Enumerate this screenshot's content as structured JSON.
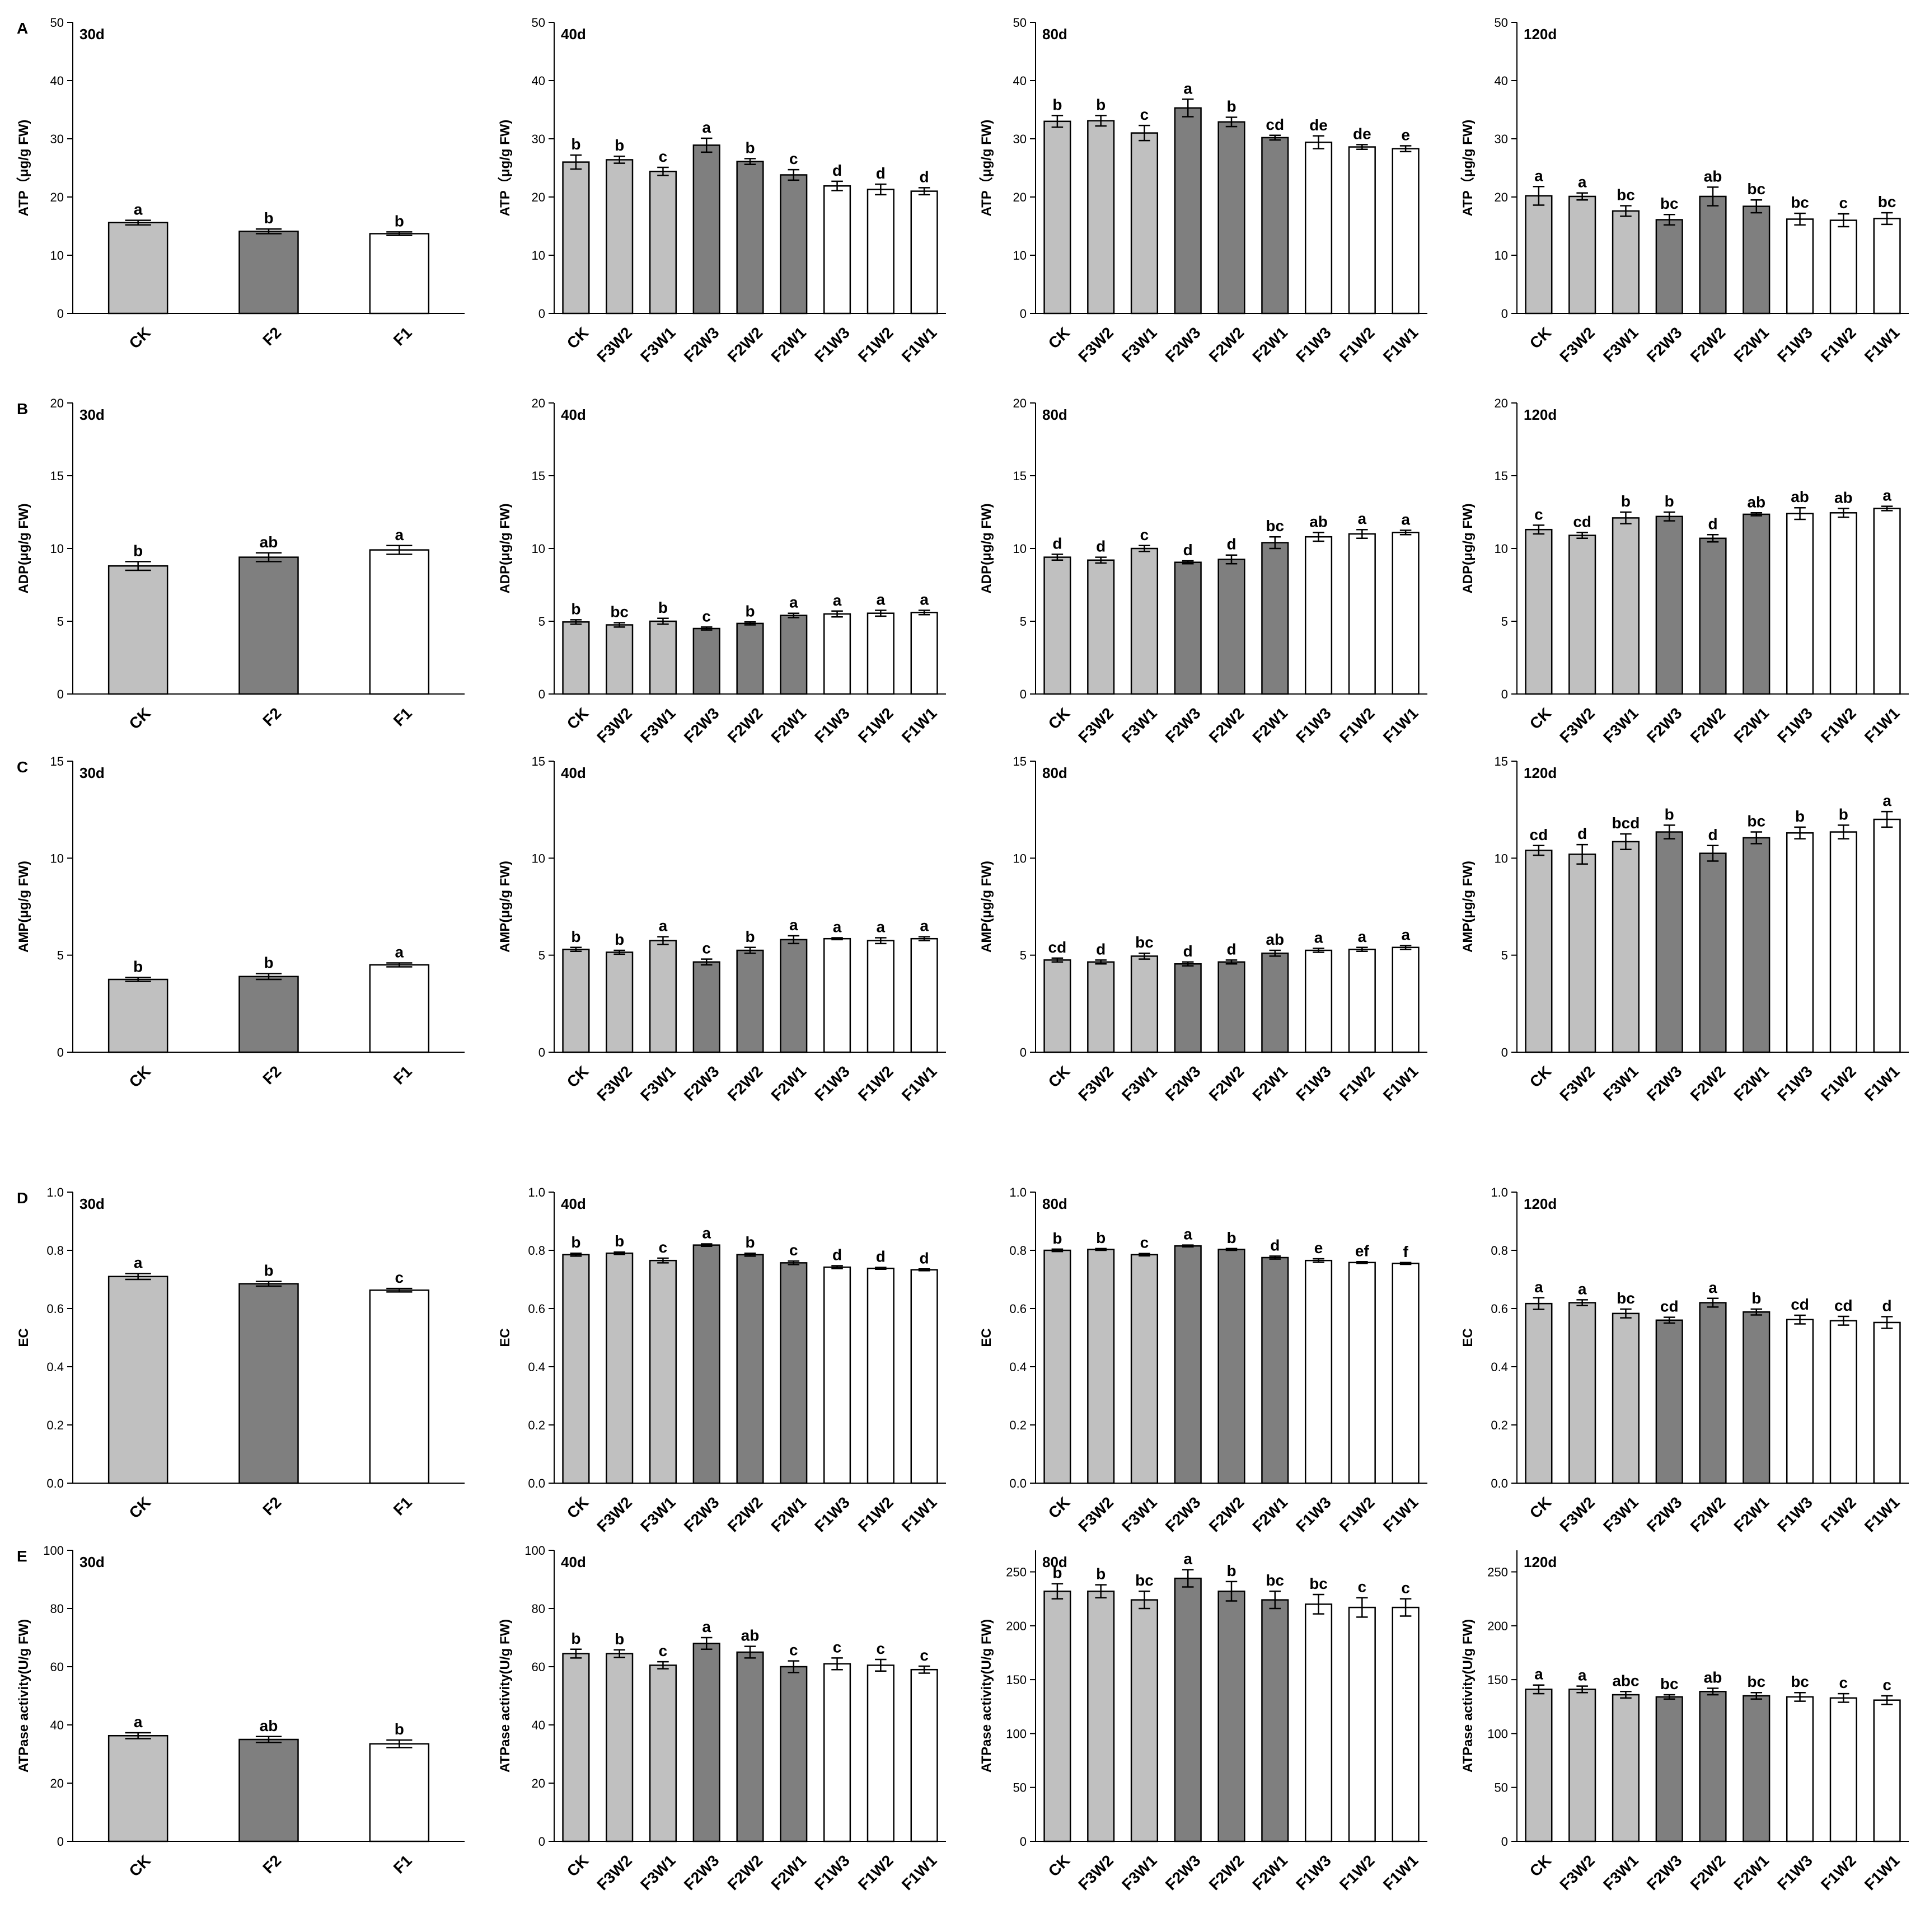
{
  "chart_data": [
    {
      "type": "bar",
      "panel": "A",
      "title": "30d",
      "ylabel": "ATP（μg/g FW)",
      "categories": [
        "CK",
        "F2",
        "F1"
      ],
      "values": [
        15.6,
        14.1,
        13.7
      ],
      "errors": [
        0.4,
        0.4,
        0.3
      ],
      "letters": [
        "a",
        "b",
        "b"
      ],
      "colors": [
        "#c0c0c0",
        "#7f7f7f",
        "#ffffff"
      ],
      "ylim": [
        0,
        50
      ],
      "yticks": [
        0,
        10,
        20,
        30,
        40,
        50
      ]
    },
    {
      "type": "bar",
      "title": "40d",
      "ylabel": "ATP（μg/g FW)",
      "categories": [
        "CK",
        "F3W2",
        "F3W1",
        "F2W3",
        "F2W2",
        "F2W1",
        "F1W3",
        "F1W2",
        "F1W1"
      ],
      "values": [
        26,
        26.4,
        24.4,
        28.9,
        26.1,
        23.8,
        21.9,
        21.3,
        21
      ],
      "errors": [
        1.2,
        0.6,
        0.7,
        1.2,
        0.5,
        0.9,
        0.8,
        0.9,
        0.6
      ],
      "letters": [
        "b",
        "b",
        "c",
        "a",
        "b",
        "c",
        "d",
        "d",
        "d"
      ],
      "colors": [
        "#c0c0c0",
        "#c0c0c0",
        "#c0c0c0",
        "#7f7f7f",
        "#7f7f7f",
        "#7f7f7f",
        "#ffffff",
        "#ffffff",
        "#ffffff"
      ],
      "ylim": [
        0,
        50
      ],
      "yticks": [
        0,
        10,
        20,
        30,
        40,
        50
      ]
    },
    {
      "type": "bar",
      "title": "80d",
      "ylabel": "ATP（μg/g FW)",
      "categories": [
        "CK",
        "F3W2",
        "F3W1",
        "F2W3",
        "F2W2",
        "F2W1",
        "F1W3",
        "F1W2",
        "F1W1"
      ],
      "values": [
        33,
        33.1,
        31,
        35.3,
        32.9,
        30.2,
        29.4,
        28.6,
        28.3
      ],
      "errors": [
        1,
        0.9,
        1.3,
        1.5,
        0.8,
        0.4,
        1.1,
        0.4,
        0.5
      ],
      "letters": [
        "b",
        "b",
        "c",
        "a",
        "b",
        "cd",
        "de",
        "de",
        "e"
      ],
      "colors": [
        "#c0c0c0",
        "#c0c0c0",
        "#c0c0c0",
        "#7f7f7f",
        "#7f7f7f",
        "#7f7f7f",
        "#ffffff",
        "#ffffff",
        "#ffffff"
      ],
      "ylim": [
        0,
        50
      ],
      "yticks": [
        0,
        10,
        20,
        30,
        40,
        50
      ]
    },
    {
      "type": "bar",
      "title": "120d",
      "ylabel": "ATP（μg/g FW)",
      "categories": [
        "CK",
        "F3W2",
        "F3W1",
        "F2W3",
        "F2W2",
        "F2W1",
        "F1W3",
        "F1W2",
        "F1W1"
      ],
      "values": [
        20.2,
        20.1,
        17.6,
        16.1,
        20.1,
        18.4,
        16.2,
        16,
        16.3
      ],
      "errors": [
        1.6,
        0.6,
        0.9,
        0.9,
        1.6,
        1.1,
        1,
        1.1,
        1
      ],
      "letters": [
        "a",
        "a",
        "bc",
        "bc",
        "ab",
        "bc",
        "bc",
        "c",
        "bc"
      ],
      "colors": [
        "#c0c0c0",
        "#c0c0c0",
        "#c0c0c0",
        "#7f7f7f",
        "#7f7f7f",
        "#7f7f7f",
        "#ffffff",
        "#ffffff",
        "#ffffff"
      ],
      "ylim": [
        0,
        50
      ],
      "yticks": [
        0,
        10,
        20,
        30,
        40,
        50
      ]
    },
    {
      "type": "bar",
      "panel": "B",
      "title": "30d",
      "ylabel": "ADP(μg/g FW)",
      "categories": [
        "CK",
        "F2",
        "F1"
      ],
      "values": [
        8.8,
        9.4,
        9.9
      ],
      "errors": [
        0.3,
        0.3,
        0.3
      ],
      "letters": [
        "b",
        "ab",
        "a"
      ],
      "colors": [
        "#c0c0c0",
        "#7f7f7f",
        "#ffffff"
      ],
      "ylim": [
        0,
        20
      ],
      "yticks": [
        0,
        5,
        10,
        15,
        20
      ]
    },
    {
      "type": "bar",
      "title": "40d",
      "ylabel": "ADP(μg/g FW)",
      "categories": [
        "CK",
        "F3W2",
        "F3W1",
        "F2W3",
        "F2W2",
        "F2W1",
        "F1W3",
        "F1W2",
        "F1W1"
      ],
      "values": [
        4.95,
        4.75,
        5,
        4.5,
        4.85,
        5.4,
        5.5,
        5.55,
        5.6
      ],
      "errors": [
        0.15,
        0.15,
        0.2,
        0.1,
        0.1,
        0.15,
        0.2,
        0.2,
        0.15
      ],
      "letters": [
        "b",
        "bc",
        "b",
        "c",
        "b",
        "a",
        "a",
        "a",
        "a"
      ],
      "colors": [
        "#c0c0c0",
        "#c0c0c0",
        "#c0c0c0",
        "#7f7f7f",
        "#7f7f7f",
        "#7f7f7f",
        "#ffffff",
        "#ffffff",
        "#ffffff"
      ],
      "ylim": [
        0,
        20
      ],
      "yticks": [
        0,
        5,
        10,
        15,
        20
      ]
    },
    {
      "type": "bar",
      "title": "80d",
      "ylabel": "ADP(μg/g FW)",
      "categories": [
        "CK",
        "F3W2",
        "F3W1",
        "F2W3",
        "F2W2",
        "F2W1",
        "F1W3",
        "F1W2",
        "F1W1"
      ],
      "values": [
        9.4,
        9.2,
        10,
        9.05,
        9.25,
        10.4,
        10.8,
        11,
        11.1
      ],
      "errors": [
        0.2,
        0.2,
        0.2,
        0.1,
        0.3,
        0.4,
        0.3,
        0.3,
        0.15
      ],
      "letters": [
        "d",
        "d",
        "c",
        "d",
        "d",
        "bc",
        "ab",
        "a",
        "a"
      ],
      "colors": [
        "#c0c0c0",
        "#c0c0c0",
        "#c0c0c0",
        "#7f7f7f",
        "#7f7f7f",
        "#7f7f7f",
        "#ffffff",
        "#ffffff",
        "#ffffff"
      ],
      "ylim": [
        0,
        20
      ],
      "yticks": [
        0,
        5,
        10,
        15,
        20
      ]
    },
    {
      "type": "bar",
      "title": "120d",
      "ylabel": "ADP(μg/g FW)",
      "categories": [
        "CK",
        "F3W2",
        "F3W1",
        "F2W3",
        "F2W2",
        "F2W1",
        "F1W3",
        "F1W2",
        "F1W1"
      ],
      "values": [
        11.3,
        10.9,
        12.1,
        12.2,
        10.7,
        12.35,
        12.4,
        12.45,
        12.75
      ],
      "errors": [
        0.3,
        0.2,
        0.4,
        0.3,
        0.25,
        0.1,
        0.4,
        0.3,
        0.15
      ],
      "letters": [
        "c",
        "cd",
        "b",
        "b",
        "d",
        "ab",
        "ab",
        "ab",
        "a"
      ],
      "colors": [
        "#c0c0c0",
        "#c0c0c0",
        "#c0c0c0",
        "#7f7f7f",
        "#7f7f7f",
        "#7f7f7f",
        "#ffffff",
        "#ffffff",
        "#ffffff"
      ],
      "ylim": [
        0,
        20
      ],
      "yticks": [
        0,
        5,
        10,
        15,
        20
      ]
    },
    {
      "type": "bar",
      "panel": "C",
      "title": "30d",
      "ylabel": "AMP(μg/g FW)",
      "categories": [
        "CK",
        "F2",
        "F1"
      ],
      "values": [
        3.75,
        3.9,
        4.5
      ],
      "errors": [
        0.1,
        0.15,
        0.1
      ],
      "letters": [
        "b",
        "b",
        "a"
      ],
      "colors": [
        "#c0c0c0",
        "#7f7f7f",
        "#ffffff"
      ],
      "ylim": [
        0,
        15
      ],
      "yticks": [
        0,
        5,
        10,
        15
      ]
    },
    {
      "type": "bar",
      "title": "40d",
      "ylabel": "AMP(μg/g FW)",
      "categories": [
        "CK",
        "F3W2",
        "F3W1",
        "F2W3",
        "F2W2",
        "F2W1",
        "F1W3",
        "F1W2",
        "F1W1"
      ],
      "values": [
        5.3,
        5.15,
        5.75,
        4.65,
        5.25,
        5.8,
        5.85,
        5.75,
        5.85
      ],
      "errors": [
        0.1,
        0.1,
        0.2,
        0.15,
        0.15,
        0.2,
        0.05,
        0.15,
        0.1
      ],
      "letters": [
        "b",
        "b",
        "a",
        "c",
        "b",
        "a",
        "a",
        "a",
        "a"
      ],
      "colors": [
        "#c0c0c0",
        "#c0c0c0",
        "#c0c0c0",
        "#7f7f7f",
        "#7f7f7f",
        "#7f7f7f",
        "#ffffff",
        "#ffffff",
        "#ffffff"
      ],
      "ylim": [
        0,
        15
      ],
      "yticks": [
        0,
        5,
        10,
        15
      ]
    },
    {
      "type": "bar",
      "title": "80d",
      "ylabel": "AMP(μg/g FW)",
      "categories": [
        "CK",
        "F3W2",
        "F3W1",
        "F2W3",
        "F2W2",
        "F2W1",
        "F1W3",
        "F1W2",
        "F1W1"
      ],
      "values": [
        4.75,
        4.65,
        4.95,
        4.55,
        4.65,
        5.1,
        5.25,
        5.3,
        5.4
      ],
      "errors": [
        0.1,
        0.1,
        0.15,
        0.1,
        0.1,
        0.15,
        0.1,
        0.1,
        0.1
      ],
      "letters": [
        "cd",
        "d",
        "bc",
        "d",
        "d",
        "ab",
        "a",
        "a",
        "a"
      ],
      "colors": [
        "#c0c0c0",
        "#c0c0c0",
        "#c0c0c0",
        "#7f7f7f",
        "#7f7f7f",
        "#7f7f7f",
        "#ffffff",
        "#ffffff",
        "#ffffff"
      ],
      "ylim": [
        0,
        15
      ],
      "yticks": [
        0,
        5,
        10,
        15
      ]
    },
    {
      "type": "bar",
      "title": "120d",
      "ylabel": "AMP(μg/g FW)",
      "categories": [
        "CK",
        "F3W2",
        "F3W1",
        "F2W3",
        "F2W2",
        "F2W1",
        "F1W3",
        "F1W2",
        "F1W1"
      ],
      "values": [
        10.4,
        10.2,
        10.85,
        11.35,
        10.25,
        11.05,
        11.3,
        11.35,
        12
      ],
      "errors": [
        0.25,
        0.5,
        0.4,
        0.35,
        0.4,
        0.3,
        0.3,
        0.35,
        0.4
      ],
      "letters": [
        "cd",
        "d",
        "bcd",
        "b",
        "d",
        "bc",
        "b",
        "b",
        "a"
      ],
      "colors": [
        "#c0c0c0",
        "#c0c0c0",
        "#c0c0c0",
        "#7f7f7f",
        "#7f7f7f",
        "#7f7f7f",
        "#ffffff",
        "#ffffff",
        "#ffffff"
      ],
      "ylim": [
        0,
        15
      ],
      "yticks": [
        0,
        5,
        10,
        15
      ]
    },
    {
      "type": "bar",
      "panel": "D",
      "title": "30d",
      "ylabel": "EC",
      "categories": [
        "CK",
        "F2",
        "F1"
      ],
      "values": [
        0.71,
        0.685,
        0.663
      ],
      "errors": [
        0.01,
        0.008,
        0.006
      ],
      "letters": [
        "a",
        "b",
        "c"
      ],
      "colors": [
        "#c0c0c0",
        "#7f7f7f",
        "#ffffff"
      ],
      "ylim": [
        0,
        1
      ],
      "yticks": [
        {
          "value": 0,
          "label": "0.0"
        },
        0.2,
        0.4,
        0.6,
        0.8,
        {
          "value": 1,
          "label": "1.0"
        }
      ]
    },
    {
      "type": "bar",
      "title": "40d",
      "ylabel": "EC",
      "categories": [
        "CK",
        "F3W2",
        "F3W1",
        "F2W3",
        "F2W2",
        "F2W1",
        "F1W3",
        "F1W2",
        "F1W1"
      ],
      "values": [
        0.785,
        0.79,
        0.765,
        0.818,
        0.785,
        0.757,
        0.742,
        0.738,
        0.733
      ],
      "errors": [
        0.005,
        0.004,
        0.008,
        0.004,
        0.005,
        0.006,
        0.005,
        0.003,
        0.003
      ],
      "letters": [
        "b",
        "b",
        "c",
        "a",
        "b",
        "c",
        "d",
        "d",
        "d"
      ],
      "colors": [
        "#c0c0c0",
        "#c0c0c0",
        "#c0c0c0",
        "#7f7f7f",
        "#7f7f7f",
        "#7f7f7f",
        "#ffffff",
        "#ffffff",
        "#ffffff"
      ],
      "ylim": [
        0,
        1
      ],
      "yticks": [
        {
          "value": 0,
          "label": "0.0"
        },
        0.2,
        0.4,
        0.6,
        0.8,
        {
          "value": 1,
          "label": "1.0"
        }
      ]
    },
    {
      "type": "bar",
      "title": "80d",
      "ylabel": "EC",
      "categories": [
        "CK",
        "F3W2",
        "F3W1",
        "F2W3",
        "F2W2",
        "F2W1",
        "F1W3",
        "F1W2",
        "F1W1"
      ],
      "values": [
        0.8,
        0.803,
        0.785,
        0.815,
        0.803,
        0.775,
        0.765,
        0.758,
        0.755
      ],
      "errors": [
        0.004,
        0.003,
        0.004,
        0.003,
        0.003,
        0.005,
        0.006,
        0.003,
        0.003
      ],
      "letters": [
        "b",
        "b",
        "c",
        "a",
        "b",
        "d",
        "e",
        "ef",
        "f"
      ],
      "colors": [
        "#c0c0c0",
        "#c0c0c0",
        "#c0c0c0",
        "#7f7f7f",
        "#7f7f7f",
        "#7f7f7f",
        "#ffffff",
        "#ffffff",
        "#ffffff"
      ],
      "ylim": [
        0,
        1
      ],
      "yticks": [
        {
          "value": 0,
          "label": "0.0"
        },
        0.2,
        0.4,
        0.6,
        0.8,
        {
          "value": 1,
          "label": "1.0"
        }
      ]
    },
    {
      "type": "bar",
      "title": "120d",
      "ylabel": "EC",
      "categories": [
        "CK",
        "F3W2",
        "F3W1",
        "F2W3",
        "F2W2",
        "F2W1",
        "F1W3",
        "F1W2",
        "F1W1"
      ],
      "values": [
        0.617,
        0.62,
        0.583,
        0.56,
        0.62,
        0.588,
        0.562,
        0.558,
        0.552
      ],
      "errors": [
        0.02,
        0.01,
        0.015,
        0.01,
        0.015,
        0.01,
        0.015,
        0.015,
        0.02
      ],
      "letters": [
        "a",
        "a",
        "bc",
        "cd",
        "a",
        "b",
        "cd",
        "cd",
        "d"
      ],
      "colors": [
        "#c0c0c0",
        "#c0c0c0",
        "#c0c0c0",
        "#7f7f7f",
        "#7f7f7f",
        "#7f7f7f",
        "#ffffff",
        "#ffffff",
        "#ffffff"
      ],
      "ylim": [
        0,
        1
      ],
      "yticks": [
        {
          "value": 0,
          "label": "0.0"
        },
        0.2,
        0.4,
        0.6,
        0.8,
        {
          "value": 1,
          "label": "1.0"
        }
      ]
    },
    {
      "type": "bar",
      "panel": "E",
      "title": "30d",
      "ylabel": "ATPase activity(U/g FW)",
      "categories": [
        "CK",
        "F2",
        "F1"
      ],
      "values": [
        36.3,
        35,
        33.5
      ],
      "errors": [
        1,
        1,
        1.3
      ],
      "letters": [
        "a",
        "ab",
        "b"
      ],
      "colors": [
        "#c0c0c0",
        "#7f7f7f",
        "#ffffff"
      ],
      "ylim": [
        0,
        100
      ],
      "yticks": [
        0,
        20,
        40,
        60,
        80,
        100
      ]
    },
    {
      "type": "bar",
      "title": "40d",
      "ylabel": "ATPase activity(U/g FW)",
      "categories": [
        "CK",
        "F3W2",
        "F3W1",
        "F2W3",
        "F2W2",
        "F2W1",
        "F1W3",
        "F1W2",
        "F1W1"
      ],
      "values": [
        64.5,
        64.5,
        60.5,
        68,
        65,
        60,
        61,
        60.5,
        59
      ],
      "errors": [
        1.5,
        1.3,
        1.2,
        2,
        2,
        2,
        2,
        2,
        1.2
      ],
      "letters": [
        "b",
        "b",
        "c",
        "a",
        "ab",
        "c",
        "c",
        "c",
        "c"
      ],
      "colors": [
        "#c0c0c0",
        "#c0c0c0",
        "#c0c0c0",
        "#7f7f7f",
        "#7f7f7f",
        "#7f7f7f",
        "#ffffff",
        "#ffffff",
        "#ffffff"
      ],
      "ylim": [
        0,
        100
      ],
      "yticks": [
        0,
        20,
        40,
        60,
        80,
        100
      ]
    },
    {
      "type": "bar",
      "title": "80d",
      "ylabel": "ATPase activity(U/g FW)",
      "categories": [
        "CK",
        "F3W2",
        "F3W1",
        "F2W3",
        "F2W2",
        "F2W1",
        "F1W3",
        "F1W2",
        "F1W1"
      ],
      "values": [
        232,
        232,
        224,
        244,
        232,
        224,
        220,
        217,
        217
      ],
      "errors": [
        7,
        6,
        8,
        8,
        9,
        8,
        9,
        9,
        8
      ],
      "letters": [
        "b",
        "b",
        "bc",
        "a",
        "b",
        "bc",
        "bc",
        "c",
        "c"
      ],
      "colors": [
        "#c0c0c0",
        "#c0c0c0",
        "#c0c0c0",
        "#7f7f7f",
        "#7f7f7f",
        "#7f7f7f",
        "#ffffff",
        "#ffffff",
        "#ffffff"
      ],
      "ylim": [
        0,
        270
      ],
      "yticks": [
        0,
        50,
        100,
        150,
        200,
        250
      ]
    },
    {
      "type": "bar",
      "title": "120d",
      "ylabel": "ATPase activity(U/g FW)",
      "categories": [
        "CK",
        "F3W2",
        "F3W1",
        "F2W3",
        "F2W2",
        "F2W1",
        "F1W3",
        "F1W2",
        "F1W1"
      ],
      "values": [
        141,
        141,
        136,
        134,
        139,
        135,
        134,
        133,
        131
      ],
      "errors": [
        4,
        3,
        3,
        2,
        3,
        3,
        4,
        4,
        4
      ],
      "letters": [
        "a",
        "a",
        "abc",
        "bc",
        "ab",
        "bc",
        "bc",
        "c",
        "c"
      ],
      "colors": [
        "#c0c0c0",
        "#c0c0c0",
        "#c0c0c0",
        "#7f7f7f",
        "#7f7f7f",
        "#7f7f7f",
        "#ffffff",
        "#ffffff",
        "#ffffff"
      ],
      "ylim": [
        0,
        270
      ],
      "yticks": [
        0,
        50,
        100,
        150,
        200,
        250
      ]
    }
  ]
}
